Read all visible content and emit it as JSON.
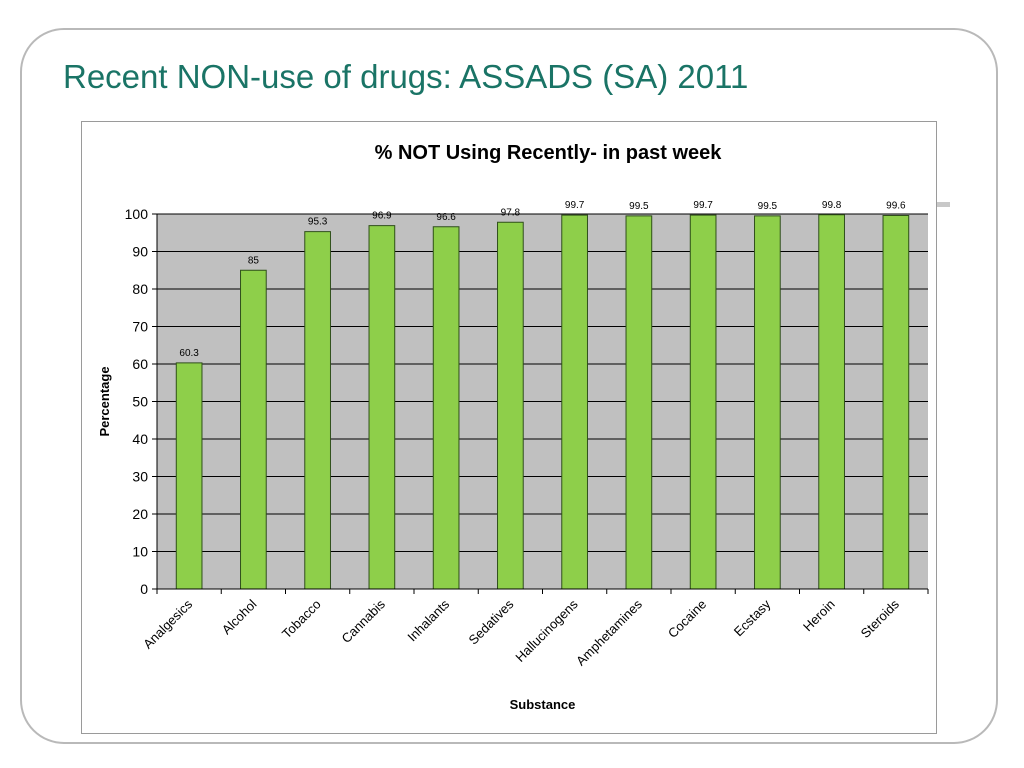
{
  "slide": {
    "title": "Recent NON-use of drugs: ASSADS (SA) 2011"
  },
  "colors": {
    "title": "#1a7466",
    "bar_fill": "#8ecf4a",
    "bar_stroke": "#2f4f1a",
    "plot_background": "#c0c0c0",
    "gridline": "#000000"
  },
  "chart_data": {
    "type": "bar",
    "title": "% NOT Using Recently- in past week",
    "xlabel": "Substance",
    "ylabel": "Percentage",
    "ylim": [
      0,
      100
    ],
    "ytick_step": 10,
    "grid": true,
    "legend": "none",
    "categories": [
      "Analgesics",
      "Alcohol",
      "Tobacco",
      "Cannabis",
      "Inhalants",
      "Sedatives",
      "Hallucinogens",
      "Amphetamines",
      "Cocaine",
      "Ecstasy",
      "Heroin",
      "Steroids"
    ],
    "values": [
      60.3,
      85,
      95.3,
      96.9,
      96.6,
      97.8,
      99.7,
      99.5,
      99.7,
      99.5,
      99.8,
      99.6
    ],
    "data_labels": [
      "60.3",
      "85",
      "95.3",
      "96.9",
      "96.6",
      "97.8",
      "99.7",
      "99.5",
      "99.7",
      "99.5",
      "99.8",
      "99.6"
    ]
  }
}
